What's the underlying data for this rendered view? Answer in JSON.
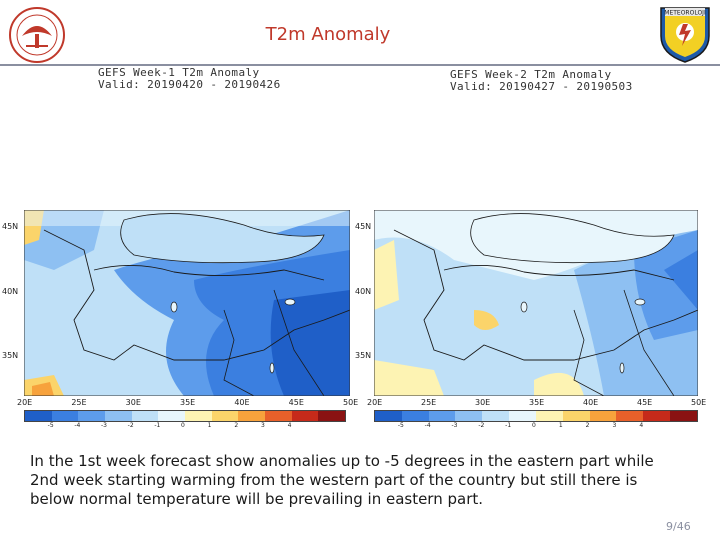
{
  "title": "T2m Anomaly",
  "panels": [
    {
      "line1": "GEFS Week-1 T2m Anomaly",
      "line2": "Valid: 20190420 - 20190426"
    },
    {
      "line1": "GEFS Week-2 T2m Anomaly",
      "line2": "Valid: 20190427 - 20190503"
    }
  ],
  "lat_labels": [
    "45N",
    "40N",
    "35N"
  ],
  "lon_labels": [
    "20E",
    "25E",
    "30E",
    "35E",
    "40E",
    "45E",
    "50E"
  ],
  "colorbar": {
    "ticks": [
      "-5",
      "-4",
      "-3",
      "-2",
      "-1",
      "0",
      "1",
      "2",
      "3",
      "4"
    ],
    "colors": [
      "#1f5fc8",
      "#3b7fe0",
      "#5d9ceb",
      "#8ec0f2",
      "#bfe0f7",
      "#e8f6fc",
      "#fdf3b3",
      "#fbd46a",
      "#f7a23c",
      "#e8602a",
      "#c62a1a",
      "#8a1212"
    ]
  },
  "caption": "In the 1st week forecast show anomalies up to -5 degrees in the eastern part while 2nd week starting warming from the western part of the country but still there is below normal temperature will be prevailing in eastern part.",
  "page_number": "9/46"
}
